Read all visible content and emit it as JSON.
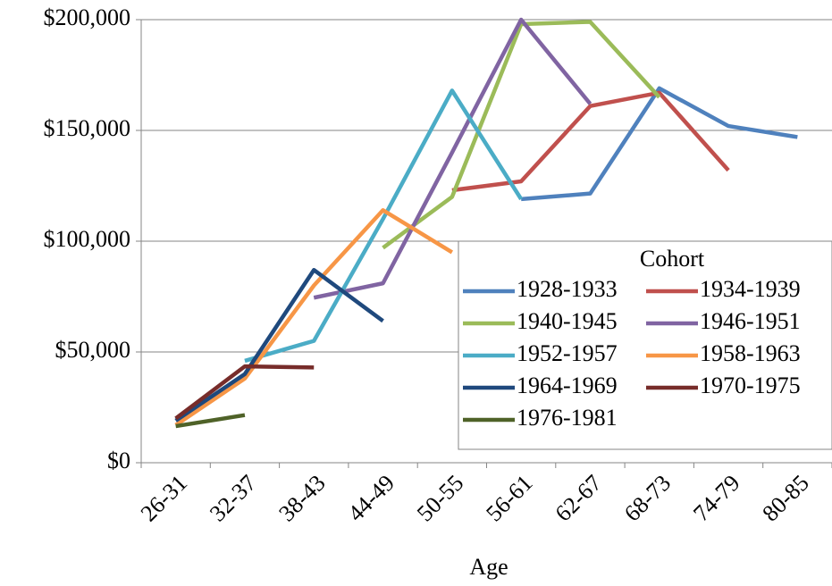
{
  "chart_data": {
    "type": "line",
    "x_label": "Age",
    "legend_title": "Cohort",
    "categories": [
      "26-31",
      "32-37",
      "38-43",
      "44-49",
      "50-55",
      "56-61",
      "62-67",
      "68-73",
      "74-79",
      "80-85"
    ],
    "ylim": [
      0,
      200000
    ],
    "yticks": [
      {
        "value": 0,
        "label": "$0"
      },
      {
        "value": 50000,
        "label": "$50,000"
      },
      {
        "value": 100000,
        "label": "$100,000"
      },
      {
        "value": 150000,
        "label": "$150,000"
      },
      {
        "value": 200000,
        "label": "$200,000"
      }
    ],
    "grid": true,
    "legend": "lower right",
    "series": [
      {
        "name": "1928-1933",
        "color": "#4f81bd",
        "values": [
          null,
          null,
          null,
          null,
          null,
          119000,
          121500,
          169000,
          152000,
          147000
        ]
      },
      {
        "name": "1934-1939",
        "color": "#c0504d",
        "values": [
          null,
          null,
          null,
          null,
          123000,
          127000,
          161000,
          167000,
          132000,
          null
        ]
      },
      {
        "name": "1940-1945",
        "color": "#9bbb59",
        "values": [
          null,
          null,
          null,
          97000,
          120000,
          198000,
          199000,
          165000,
          null,
          null
        ]
      },
      {
        "name": "1946-1951",
        "color": "#8064a2",
        "values": [
          null,
          null,
          74500,
          81000,
          140000,
          200000,
          162000,
          null,
          null,
          null
        ]
      },
      {
        "name": "1952-1957",
        "color": "#4bacc6",
        "values": [
          null,
          46000,
          55000,
          110000,
          168000,
          119000,
          null,
          null,
          null,
          null
        ]
      },
      {
        "name": "1958-1963",
        "color": "#f79646",
        "values": [
          17000,
          38000,
          80000,
          114000,
          95000,
          null,
          null,
          null,
          null,
          null
        ]
      },
      {
        "name": "1964-1969",
        "color": "#1f497d",
        "values": [
          19000,
          40000,
          87000,
          64000,
          null,
          null,
          null,
          null,
          null,
          null
        ]
      },
      {
        "name": "1970-1975",
        "color": "#772c2a",
        "values": [
          20000,
          43500,
          43000,
          null,
          null,
          null,
          null,
          null,
          null,
          null
        ]
      },
      {
        "name": "1976-1981",
        "color": "#4f6228",
        "values": [
          16500,
          21500,
          null,
          null,
          null,
          null,
          null,
          null,
          null,
          null
        ]
      }
    ]
  }
}
